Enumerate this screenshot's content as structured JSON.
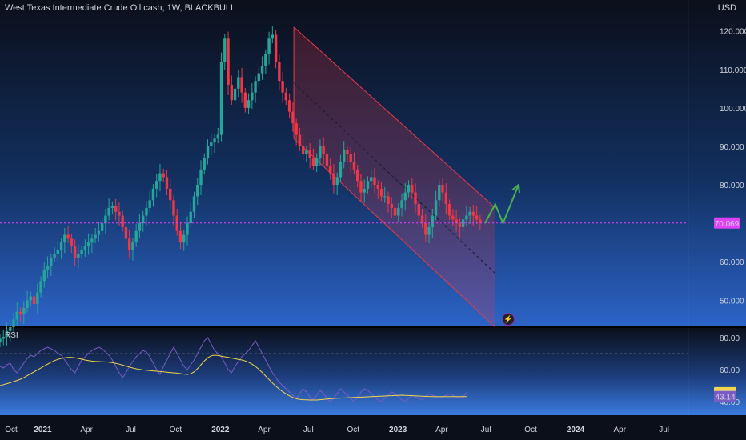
{
  "header": {
    "title": "West Texas Intermediate Crude Oil cash, 1W, BLACKBULL",
    "currency": "USD"
  },
  "rsi_panel": {
    "label": "RSI",
    "tick_labels": [
      "80.00",
      "60.00",
      "40.00"
    ],
    "rsi_badge": "45.58",
    "rsi_ma_badge": "43.14"
  },
  "colors": {
    "up": "#26a69a",
    "down": "#f23645",
    "channel": "#f23645",
    "arrow": "#4caf50",
    "current_line": "#e040fb",
    "rsi_line": "#7b5cc4",
    "rsi_ma": "#f2d54a"
  },
  "chart_data": [
    {
      "type": "candlestick",
      "title": "West Texas Intermediate Crude Oil cash, 1W, BLACKBULL",
      "ylabel": "USD",
      "ylim": [
        43,
        127
      ],
      "y_ticks": [
        "120.000",
        "110.000",
        "100.000",
        "90.000",
        "80.000",
        "70.000",
        "60.000",
        "50.000"
      ],
      "x_ticks": [
        "Oct",
        "2021",
        "Apr",
        "Jul",
        "Oct",
        "2022",
        "Apr",
        "Jul",
        "Oct",
        "2023",
        "Apr",
        "Jul",
        "Oct",
        "2024",
        "Apr",
        "Jul"
      ],
      "x_ticks_bold": [
        "2021",
        "2022",
        "2023",
        "2024"
      ],
      "x_start": "2020-10-05",
      "x_end": "2024-08-20",
      "current_price": 70.069,
      "current_price_label": "70.069",
      "closes": [
        40,
        40.5,
        42,
        43,
        45,
        47,
        46.5,
        48,
        50,
        51,
        49,
        52,
        55,
        58,
        59,
        61,
        62,
        63,
        65,
        67,
        66,
        64,
        61,
        62,
        63,
        64,
        65,
        66,
        67,
        68,
        70,
        72,
        74,
        74.5,
        73,
        72,
        69,
        66,
        63,
        65,
        68,
        70,
        72,
        74,
        76,
        79,
        81,
        83,
        82,
        79,
        76,
        72,
        68,
        65,
        67,
        70,
        73,
        77,
        80,
        84,
        87,
        90,
        91,
        92,
        93,
        112,
        118,
        106,
        102,
        105,
        108,
        104,
        100,
        102,
        104,
        107,
        109,
        111,
        114,
        118,
        119,
        112,
        107,
        104,
        102,
        99,
        96,
        93,
        90,
        88,
        89,
        87,
        85,
        87,
        90,
        88,
        85,
        83,
        80,
        82,
        86,
        89,
        88,
        86,
        84,
        81,
        78,
        79,
        81,
        82,
        80,
        79,
        77,
        77,
        75,
        74,
        72,
        74,
        76,
        78,
        80,
        78,
        75,
        72,
        70,
        67,
        69,
        72,
        76,
        80,
        78,
        75,
        72,
        71,
        70,
        69,
        71,
        72,
        73,
        72,
        71,
        70.069
      ],
      "channel": {
        "upper_start": [
          [
            "2022-06-01",
            121
          ],
          [
            "2023-07-20",
            74
          ]
        ],
        "lower_start": [
          [
            "2022-06-01",
            92
          ],
          [
            "2023-07-20",
            43
          ]
        ],
        "mid": [
          [
            "2022-06-01",
            106.5
          ],
          [
            "2023-07-20",
            57
          ]
        ]
      },
      "projection": [
        [
          "2023-06-29",
          70
        ],
        [
          "2023-07-20",
          75
        ],
        [
          "2023-08-05",
          70
        ],
        [
          "2023-09-06",
          80
        ]
      ]
    },
    {
      "type": "line",
      "name": "RSI",
      "ylim": [
        33,
        85
      ],
      "rsi": [
        62,
        61,
        63,
        64,
        60,
        58,
        61,
        64,
        67,
        69,
        68,
        70,
        72,
        73,
        74,
        73,
        72,
        70,
        69,
        66,
        63,
        60,
        58,
        62,
        66,
        68,
        70,
        72,
        73,
        74,
        73,
        71,
        69,
        66,
        62,
        58,
        55,
        58,
        62,
        65,
        68,
        70,
        72,
        71,
        68,
        64,
        60,
        57,
        62,
        66,
        70,
        74,
        70,
        66,
        62,
        60,
        63,
        66,
        70,
        74,
        78,
        80,
        76,
        72,
        70,
        68,
        64,
        60,
        58,
        62,
        65,
        68,
        70,
        72,
        75,
        78,
        74,
        70,
        66,
        62,
        58,
        55,
        52,
        50,
        48,
        46,
        44,
        42,
        45,
        48,
        46,
        43,
        41,
        44,
        47,
        45,
        42,
        40,
        42,
        45,
        48,
        46,
        44,
        42,
        40,
        43,
        46,
        48,
        47,
        45,
        43,
        41,
        40,
        42,
        44,
        46,
        45,
        43,
        41,
        40,
        42,
        44,
        43,
        42,
        41,
        43,
        45,
        44,
        43,
        42,
        43,
        44,
        45,
        44,
        43,
        42,
        43,
        45.58
      ],
      "rsi_ma": [
        50,
        50.6,
        51.2,
        51.8,
        52.5,
        53.2,
        54,
        55,
        56.2,
        57.4,
        58.6,
        59.8,
        61,
        62.2,
        63.4,
        64.6,
        65.6,
        66.4,
        67,
        67.4,
        67.6,
        67.6,
        67.4,
        67,
        66.5,
        66,
        65.6,
        65.3,
        65.1,
        65,
        64.9,
        64.8,
        64.6,
        64.3,
        63.9,
        63.4,
        62.8,
        62.2,
        61.6,
        61,
        60.5,
        60.1,
        59.8,
        59.6,
        59.4,
        59.2,
        59,
        58.8,
        58.6,
        58.4,
        58.2,
        58,
        57.8,
        57.5,
        57.2,
        57,
        57.4,
        58.6,
        60.6,
        63,
        65.4,
        67.4,
        68.6,
        69,
        68.8,
        68.4,
        68,
        67.6,
        67.2,
        66.8,
        66.4,
        66,
        65.4,
        64.6,
        63.4,
        62,
        60.2,
        58.2,
        56,
        53.8,
        51.6,
        49.6,
        47.8,
        46.2,
        44.8,
        43.6,
        42.6,
        41.8,
        41.4,
        41.2,
        41.1,
        41,
        41,
        41,
        41.2,
        41.4,
        41.6,
        41.8,
        42,
        42.1,
        42.2,
        42.3,
        42.4,
        42.5,
        42.6,
        42.7,
        42.8,
        42.9,
        43,
        43.1,
        43.2,
        43.3,
        43.4,
        43.5,
        43.6,
        43.7,
        43.8,
        43.9,
        44,
        43.9,
        43.8,
        43.7,
        43.6,
        43.5,
        43.4,
        43.3,
        43.2,
        43.14,
        43.14,
        43.14,
        43.14,
        43.14,
        43.14,
        43.14,
        43.14,
        43.14,
        43.14,
        43.14
      ],
      "levels": [
        70,
        30
      ]
    }
  ]
}
